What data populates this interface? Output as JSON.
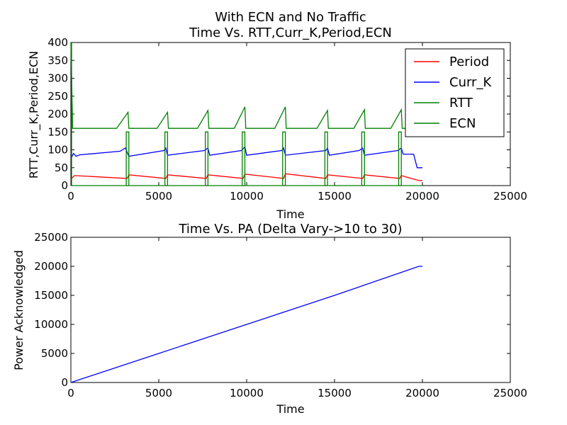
{
  "figure": {
    "suptitle": "With ECN and No Traffic"
  },
  "chart_data": [
    {
      "type": "line",
      "title": "Time Vs. RTT,Curr_K,Period,ECN",
      "xlabel": "Time",
      "ylabel": "RTT,Curr_K,Period,ECN",
      "xlim": [
        0,
        25000
      ],
      "ylim": [
        0,
        400
      ],
      "xticks": [
        0,
        5000,
        10000,
        15000,
        20000,
        25000
      ],
      "yticks": [
        0,
        50,
        100,
        150,
        200,
        250,
        300,
        350,
        400
      ],
      "grid": false,
      "legend_position": "top-right",
      "series": [
        {
          "name": "Period",
          "color": "#ff0000",
          "points": [
            [
              0,
              18
            ],
            [
              200,
              28
            ],
            [
              3200,
              20
            ],
            [
              3300,
              30
            ],
            [
              5400,
              20
            ],
            [
              5500,
              30
            ],
            [
              7700,
              20
            ],
            [
              7800,
              30
            ],
            [
              9800,
              20
            ],
            [
              9900,
              32
            ],
            [
              12100,
              20
            ],
            [
              12200,
              33
            ],
            [
              14500,
              20
            ],
            [
              14600,
              30
            ],
            [
              16600,
              20
            ],
            [
              16700,
              30
            ],
            [
              18700,
              20
            ],
            [
              18800,
              28
            ],
            [
              19800,
              14
            ],
            [
              20000,
              14
            ]
          ]
        },
        {
          "name": "Curr_K",
          "color": "#0000ff",
          "points": [
            [
              0,
              75
            ],
            [
              150,
              90
            ],
            [
              300,
              82
            ],
            [
              500,
              86
            ],
            [
              2800,
              96
            ],
            [
              3100,
              105
            ],
            [
              3300,
              82
            ],
            [
              5300,
              98
            ],
            [
              5400,
              105
            ],
            [
              5500,
              85
            ],
            [
              7600,
              98
            ],
            [
              7800,
              105
            ],
            [
              7900,
              85
            ],
            [
              9700,
              98
            ],
            [
              9900,
              108
            ],
            [
              10000,
              85
            ],
            [
              12000,
              98
            ],
            [
              12100,
              105
            ],
            [
              12200,
              85
            ],
            [
              14500,
              98
            ],
            [
              14600,
              105
            ],
            [
              14700,
              85
            ],
            [
              16400,
              98
            ],
            [
              16600,
              105
            ],
            [
              16700,
              85
            ],
            [
              18600,
              98
            ],
            [
              18800,
              105
            ],
            [
              18900,
              88
            ],
            [
              19500,
              88
            ],
            [
              19700,
              50
            ],
            [
              20000,
              50
            ]
          ]
        },
        {
          "name": "RTT",
          "color": "#008000",
          "points": [
            [
              0,
              400
            ],
            [
              100,
              160
            ],
            [
              2600,
              160
            ],
            [
              3250,
              205
            ],
            [
              3300,
              160
            ],
            [
              4900,
              160
            ],
            [
              5500,
              205
            ],
            [
              5550,
              160
            ],
            [
              7200,
              160
            ],
            [
              7800,
              210
            ],
            [
              7850,
              160
            ],
            [
              9300,
              160
            ],
            [
              9900,
              220
            ],
            [
              9950,
              160
            ],
            [
              11600,
              160
            ],
            [
              12200,
              220
            ],
            [
              12250,
              160
            ],
            [
              14000,
              160
            ],
            [
              14600,
              210
            ],
            [
              14650,
              160
            ],
            [
              16100,
              160
            ],
            [
              16700,
              212
            ],
            [
              16750,
              160
            ],
            [
              18200,
              160
            ],
            [
              18800,
              212
            ],
            [
              18850,
              160
            ],
            [
              19200,
              160
            ]
          ]
        },
        {
          "name": "ECN",
          "color": "#008000",
          "pulses": [
            [
              3150,
              3300
            ],
            [
              5350,
              5500
            ],
            [
              7650,
              7800
            ],
            [
              9750,
              9900
            ],
            [
              12050,
              12200
            ],
            [
              14450,
              14600
            ],
            [
              16550,
              16700
            ],
            [
              18650,
              18800
            ]
          ],
          "pulse_height": 150
        }
      ]
    },
    {
      "type": "line",
      "title": "Time Vs. PA (Delta Vary->10 to 30)",
      "xlabel": "Time",
      "ylabel": "Power Acknowledged",
      "xlim": [
        0,
        25000
      ],
      "ylim": [
        0,
        25000
      ],
      "xticks": [
        0,
        5000,
        10000,
        15000,
        20000,
        25000
      ],
      "yticks": [
        0,
        5000,
        10000,
        15000,
        20000,
        25000
      ],
      "grid": false,
      "legend_position": "none",
      "series": [
        {
          "color": "#0000ff",
          "points": [
            [
              0,
              0
            ],
            [
              5000,
              5000
            ],
            [
              10000,
              10000
            ],
            [
              15000,
              15000
            ],
            [
              19800,
              20000
            ],
            [
              20000,
              20000
            ]
          ]
        }
      ]
    }
  ]
}
